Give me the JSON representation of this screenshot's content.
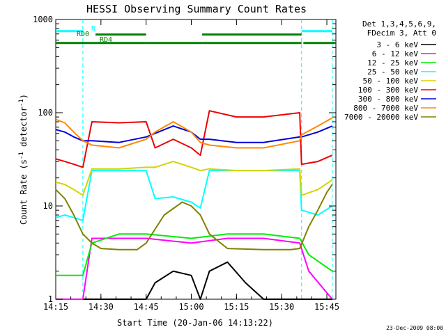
{
  "chart_data": {
    "type": "line",
    "title": "HESSI Observing Summary Count Rates",
    "xlabel": "Start Time (20-Jan-06 14:13:22)",
    "ylabel_main": "Count Rate (s",
    "ylabel_sup1": "-1",
    "ylabel_mid": " detector",
    "ylabel_sup2": "-1",
    "ylabel_end": ")",
    "y_scale": "log",
    "ylim": [
      1,
      1000
    ],
    "xlim": [
      14.25,
      15.8
    ],
    "x_ticks": [
      {
        "v": 14.25,
        "label": "14:15"
      },
      {
        "v": 14.5,
        "label": "14:30"
      },
      {
        "v": 14.75,
        "label": "14:45"
      },
      {
        "v": 15.0,
        "label": "15:00"
      },
      {
        "v": 15.25,
        "label": "15:15"
      },
      {
        "v": 15.5,
        "label": "15:30"
      },
      {
        "v": 15.75,
        "label": "15:45"
      }
    ],
    "y_ticks": [
      {
        "v": 1,
        "label": "1"
      },
      {
        "v": 10,
        "label": "10"
      },
      {
        "v": 100,
        "label": "100"
      },
      {
        "v": 1000,
        "label": "1000"
      }
    ],
    "legend_header": [
      "Det 1,3,4,5,6,9,",
      "FDecim 3, Att 0"
    ],
    "legend_placement": "right",
    "flag_labels": {
      "n": "N",
      "rd0": "RD0",
      "rd4": "RD4"
    },
    "timestamp": "23-Dec-2009 08:00",
    "night_boundaries": [
      14.4,
      15.61,
      15.78
    ],
    "series": [
      {
        "name": "3 - 6 keV",
        "color": "#000000",
        "x": [
          14.25,
          14.4,
          14.5,
          14.75,
          14.8,
          14.9,
          15.0,
          15.05,
          15.1,
          15.2,
          15.3,
          15.4,
          15.5,
          15.6,
          15.78
        ],
        "y": [
          1.0,
          1.0,
          1.0,
          1.0,
          1.5,
          2.0,
          1.8,
          1.0,
          2.0,
          2.5,
          1.5,
          1.0,
          1.0,
          1.0,
          1.0
        ]
      },
      {
        "name": "6 - 12 keV",
        "color": "#ff00ff",
        "x": [
          14.25,
          14.4,
          14.45,
          14.6,
          14.75,
          15.0,
          15.2,
          15.4,
          15.6,
          15.65,
          15.78
        ],
        "y": [
          1.0,
          1.0,
          4.5,
          4.5,
          4.5,
          4.0,
          4.5,
          4.5,
          4.0,
          2.0,
          1.0
        ]
      },
      {
        "name": "12 - 25 keV",
        "color": "#00ee00",
        "x": [
          14.25,
          14.4,
          14.45,
          14.6,
          14.75,
          15.0,
          15.2,
          15.4,
          15.6,
          15.65,
          15.78
        ],
        "y": [
          1.8,
          1.8,
          4.0,
          5.0,
          5.0,
          4.5,
          5.0,
          5.0,
          4.5,
          3.0,
          2.0
        ]
      },
      {
        "name": "25 - 50 keV",
        "color": "#00ffff",
        "x": [
          14.25,
          14.3,
          14.35,
          14.4,
          14.45,
          14.6,
          14.75,
          14.8,
          14.9,
          15.0,
          15.05,
          15.1,
          15.25,
          15.4,
          15.6,
          15.61,
          15.7,
          15.78
        ],
        "y": [
          7.5,
          8.0,
          7.5,
          7.0,
          24,
          24,
          24,
          12,
          12.5,
          11,
          9.5,
          24,
          24,
          24,
          24,
          9,
          8,
          10
        ]
      },
      {
        "name": "50 - 100 keV",
        "color": "#d4d400",
        "x": [
          14.25,
          14.3,
          14.35,
          14.4,
          14.45,
          14.6,
          14.75,
          14.8,
          14.9,
          15.0,
          15.05,
          15.1,
          15.25,
          15.4,
          15.6,
          15.61,
          15.7,
          15.78
        ],
        "y": [
          18,
          17,
          15,
          13,
          25,
          25,
          26,
          26,
          30,
          26,
          24,
          25,
          24,
          24,
          25,
          13,
          15,
          19
        ]
      },
      {
        "name": "100 - 300 keV",
        "color": "#ee0000",
        "x": [
          14.25,
          14.3,
          14.35,
          14.4,
          14.45,
          14.6,
          14.75,
          14.8,
          14.9,
          15.0,
          15.05,
          15.1,
          15.25,
          15.4,
          15.6,
          15.61,
          15.7,
          15.78
        ],
        "y": [
          32,
          30,
          28,
          26,
          80,
          78,
          80,
          42,
          52,
          42,
          35,
          105,
          90,
          90,
          100,
          28,
          30,
          35
        ]
      },
      {
        "name": "300 - 800 keV",
        "color": "#0000dd",
        "x": [
          14.25,
          14.3,
          14.35,
          14.4,
          14.45,
          14.6,
          14.75,
          14.8,
          14.9,
          15.0,
          15.05,
          15.1,
          15.25,
          15.4,
          15.6,
          15.61,
          15.7,
          15.78
        ],
        "y": [
          66,
          62,
          55,
          50,
          50,
          48,
          55,
          60,
          72,
          62,
          52,
          52,
          48,
          48,
          55,
          55,
          62,
          72
        ]
      },
      {
        "name": "800 - 7000 keV",
        "color": "#ff8800",
        "x": [
          14.25,
          14.3,
          14.35,
          14.4,
          14.45,
          14.6,
          14.75,
          14.8,
          14.9,
          15.0,
          15.05,
          15.1,
          15.25,
          15.4,
          15.6,
          15.61,
          15.7,
          15.78
        ],
        "y": [
          85,
          78,
          62,
          50,
          45,
          42,
          52,
          62,
          80,
          62,
          48,
          45,
          42,
          42,
          50,
          58,
          72,
          88
        ]
      },
      {
        "name": "7000 - 20000 keV",
        "color": "#808000",
        "x": [
          14.25,
          14.3,
          14.35,
          14.4,
          14.45,
          14.5,
          14.6,
          14.7,
          14.75,
          14.85,
          14.95,
          15.0,
          15.05,
          15.1,
          15.2,
          15.4,
          15.55,
          15.6,
          15.65,
          15.7,
          15.75,
          15.78
        ],
        "y": [
          15,
          12,
          8,
          5,
          4,
          3.5,
          3.4,
          3.4,
          4,
          8,
          11,
          10,
          8,
          5,
          3.5,
          3.4,
          3.4,
          3.5,
          6,
          9,
          14,
          17
        ]
      }
    ],
    "attenuator_flags": [
      {
        "label": "RD0",
        "color": "#008000",
        "segments": [
          [
            14.25,
            14.47
          ],
          [
            14.47,
            14.75
          ],
          [
            14.75,
            15.06
          ],
          [
            15.06,
            15.61
          ],
          [
            15.62,
            15.8
          ]
        ],
        "level": 560
      },
      {
        "label": "RD4",
        "color": "#008000",
        "segments": [
          [
            14.47,
            14.75
          ],
          [
            15.06,
            15.61
          ]
        ],
        "level": 690
      },
      {
        "label": "N",
        "color": "#00ffff",
        "segments": [
          [
            14.25,
            14.4
          ],
          [
            15.61,
            15.78
          ]
        ],
        "level": 750
      }
    ]
  }
}
